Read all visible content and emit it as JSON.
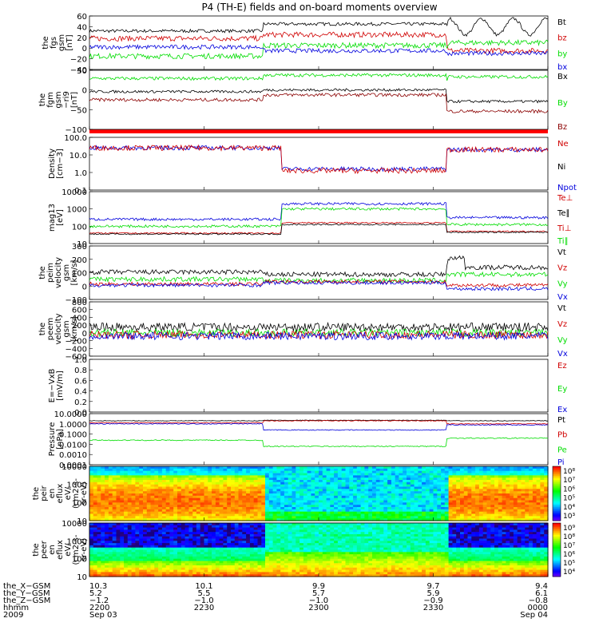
{
  "title": "P4 (TH-E) fields and on-board moments overview",
  "colors": {
    "black": "#000000",
    "red": "#d00000",
    "green": "#00dd00",
    "blue": "#0000dd",
    "darkred": "#8b0000",
    "band": "#ff0000"
  },
  "chart_data": [
    {
      "type": "line",
      "ylabel": [
        "the",
        "fgs",
        "gsm",
        "[nT]"
      ],
      "ticks": [
        "60",
        "40",
        "20",
        "0",
        "−20",
        "−40"
      ],
      "ylim": [
        -40,
        60
      ],
      "legend": [
        {
          "name": "Bt",
          "color": "black"
        },
        {
          "name": "bz",
          "color": "red"
        },
        {
          "name": "by",
          "color": "green"
        },
        {
          "name": "bx",
          "color": "blue"
        }
      ]
    },
    {
      "type": "line",
      "ylabel": [
        "the",
        "fgm",
        "gsm",
        "−ri9",
        "[nT]"
      ],
      "ticks": [
        "50",
        "0",
        "−50",
        "−100"
      ],
      "ylim": [
        -125,
        55
      ],
      "legend": [
        {
          "name": "Bx",
          "color": "black"
        },
        {
          "name": "By",
          "color": "green"
        },
        {
          "name": "Bz",
          "color": "darkred"
        }
      ]
    },
    {
      "type": "line",
      "ylabel": [
        "Density",
        "[cm−3]"
      ],
      "ticks": [
        "100.0",
        "10.0",
        "1.0",
        "0.1"
      ],
      "ylim": [
        0.1,
        100
      ],
      "log": true,
      "legend": [
        {
          "name": "Ne",
          "color": "red"
        },
        {
          "name": "Ni",
          "color": "black"
        },
        {
          "name": "Npot",
          "color": "blue"
        }
      ]
    },
    {
      "type": "line",
      "ylabel": [
        "mag13",
        "[eV]"
      ],
      "ticks": [
        "10000",
        "1000",
        "100",
        "10"
      ],
      "ylim": [
        10,
        10000
      ],
      "log": true,
      "legend": [
        {
          "name": "Te⊥",
          "color": "red"
        },
        {
          "name": "Te∥",
          "color": "black"
        },
        {
          "name": "Ti⊥",
          "color": "red"
        },
        {
          "name": "Ti∥",
          "color": "green"
        }
      ]
    },
    {
      "type": "line",
      "ylabel": [
        "the",
        "peim",
        "velocity",
        "gsm",
        "[km/s]"
      ],
      "ticks": [
        "300",
        "200",
        "100",
        "0",
        "−100"
      ],
      "ylim": [
        -150,
        300
      ],
      "legend": [
        {
          "name": "Vt",
          "color": "black"
        },
        {
          "name": "Vz",
          "color": "red"
        },
        {
          "name": "Vy",
          "color": "green"
        },
        {
          "name": "Vx",
          "color": "blue"
        }
      ]
    },
    {
      "type": "line",
      "ylabel": [
        "the",
        "peem",
        "velocity",
        "gsm",
        "[km/s]"
      ],
      "ticks": [
        "800",
        "600",
        "400",
        "200",
        "0",
        "−200",
        "−400",
        "−600"
      ],
      "ylim": [
        -600,
        800
      ],
      "legend": [
        {
          "name": "Vt",
          "color": "black"
        },
        {
          "name": "Vz",
          "color": "red"
        },
        {
          "name": "Vy",
          "color": "green"
        },
        {
          "name": "Vx",
          "color": "blue"
        }
      ]
    },
    {
      "type": "line",
      "ylabel": [
        "E=−VxB",
        "[mV/m]"
      ],
      "ticks": [
        "1.0",
        "0.8",
        "0.6",
        "0.4",
        "0.2",
        "0.0"
      ],
      "ylim": [
        0,
        1
      ],
      "legend": [
        {
          "name": "Ez",
          "color": "red"
        },
        {
          "name": "Ey",
          "color": "green"
        },
        {
          "name": "Ex",
          "color": "blue"
        }
      ]
    },
    {
      "type": "line",
      "ylabel": [
        "Pressure",
        "[nPa]"
      ],
      "ticks": [
        "10.0000",
        "1.0000",
        "0.1000",
        "0.0100",
        "0.0010",
        "0.0001"
      ],
      "ylim": [
        0.0001,
        10
      ],
      "log": true,
      "legend": [
        {
          "name": "Pt",
          "color": "black"
        },
        {
          "name": "Pb",
          "color": "red"
        },
        {
          "name": "Pe",
          "color": "green"
        },
        {
          "name": "Pi",
          "color": "blue"
        }
      ]
    },
    {
      "type": "heatmap",
      "ylabel": [
        "the",
        "peir",
        "en",
        "eflux",
        "eV/",
        "(cm2-s-",
        "sr-eV)"
      ],
      "ticks": [
        "10000",
        "1000",
        "100",
        "10"
      ],
      "ylim": [
        10,
        20000
      ],
      "log": true,
      "colorbar": [
        "10⁸",
        "10⁷",
        "10⁶",
        "10⁵",
        "10⁴",
        "10³"
      ]
    },
    {
      "type": "heatmap",
      "ylabel": [
        "the",
        "peer",
        "en",
        "eflux",
        "eV/",
        "(cm2-s-",
        "sr-eV)"
      ],
      "ticks": [
        "10000",
        "1000",
        "100",
        "10"
      ],
      "ylim": [
        10,
        20000
      ],
      "log": true,
      "colorbar": [
        "10⁹",
        "10⁸",
        "10⁷",
        "10⁶",
        "10⁵",
        "10⁴"
      ]
    }
  ],
  "xaxis": {
    "row_labels": [
      "the_X−GSM",
      "the_Y−GSM",
      "the_Z−GSM",
      "hhmm",
      "2009"
    ],
    "columns": [
      {
        "t": 0,
        "vals": [
          "10.3",
          "5.2",
          "−1.2",
          "2200",
          "Sep 03"
        ]
      },
      {
        "t": 30,
        "vals": [
          "10.1",
          "5.5",
          "−1.0",
          "2230",
          ""
        ]
      },
      {
        "t": 60,
        "vals": [
          "9.9",
          "5.7",
          "−1.0",
          "2300",
          ""
        ]
      },
      {
        "t": 90,
        "vals": [
          "9.7",
          "5.9",
          "−0.9",
          "2330",
          ""
        ]
      },
      {
        "t": 120,
        "vals": [
          "9.4",
          "6.1",
          "−0.8",
          "0000",
          "Sep 04"
        ]
      }
    ],
    "range": [
      0,
      120
    ]
  }
}
